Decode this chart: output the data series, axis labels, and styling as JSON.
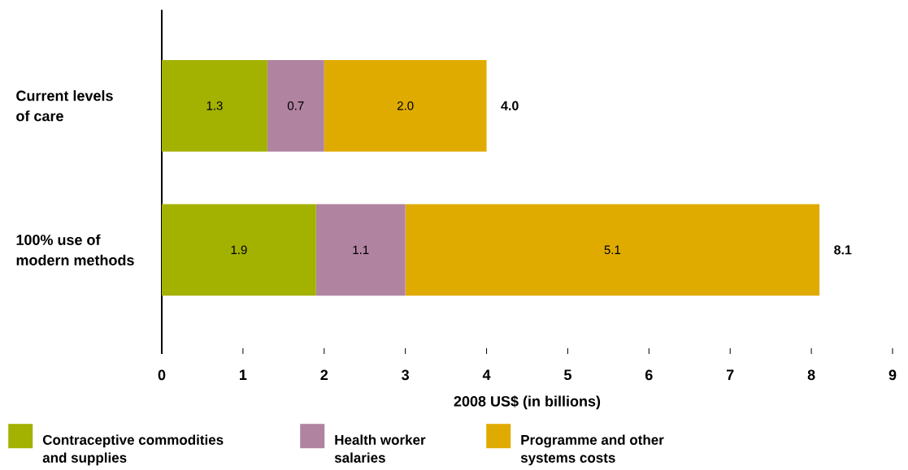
{
  "chart_data": {
    "type": "bar",
    "orientation": "horizontal",
    "stacked": true,
    "categories": [
      "Current levels of care",
      "100% use of modern methods"
    ],
    "series": [
      {
        "name": "Contraceptive commodities and supplies",
        "color": "#a3b100",
        "values": [
          1.3,
          1.9
        ],
        "value_labels": [
          "1.3",
          "1.9"
        ]
      },
      {
        "name": "Health worker salaries",
        "color": "#b083a0",
        "values": [
          0.7,
          1.1
        ],
        "value_labels": [
          "0.7",
          "1.1"
        ]
      },
      {
        "name": "Programme and other systems costs",
        "color": "#e0ab00",
        "values": [
          2.0,
          5.1
        ],
        "value_labels": [
          "2.0",
          "5.1"
        ]
      }
    ],
    "totals": [
      "4.0",
      "8.1"
    ],
    "xlim": [
      0,
      9
    ],
    "xticks": [
      0,
      1,
      2,
      3,
      4,
      5,
      6,
      7,
      8,
      9
    ],
    "xlabel": "2008 US$ (in billions)",
    "legend": "bottom"
  }
}
